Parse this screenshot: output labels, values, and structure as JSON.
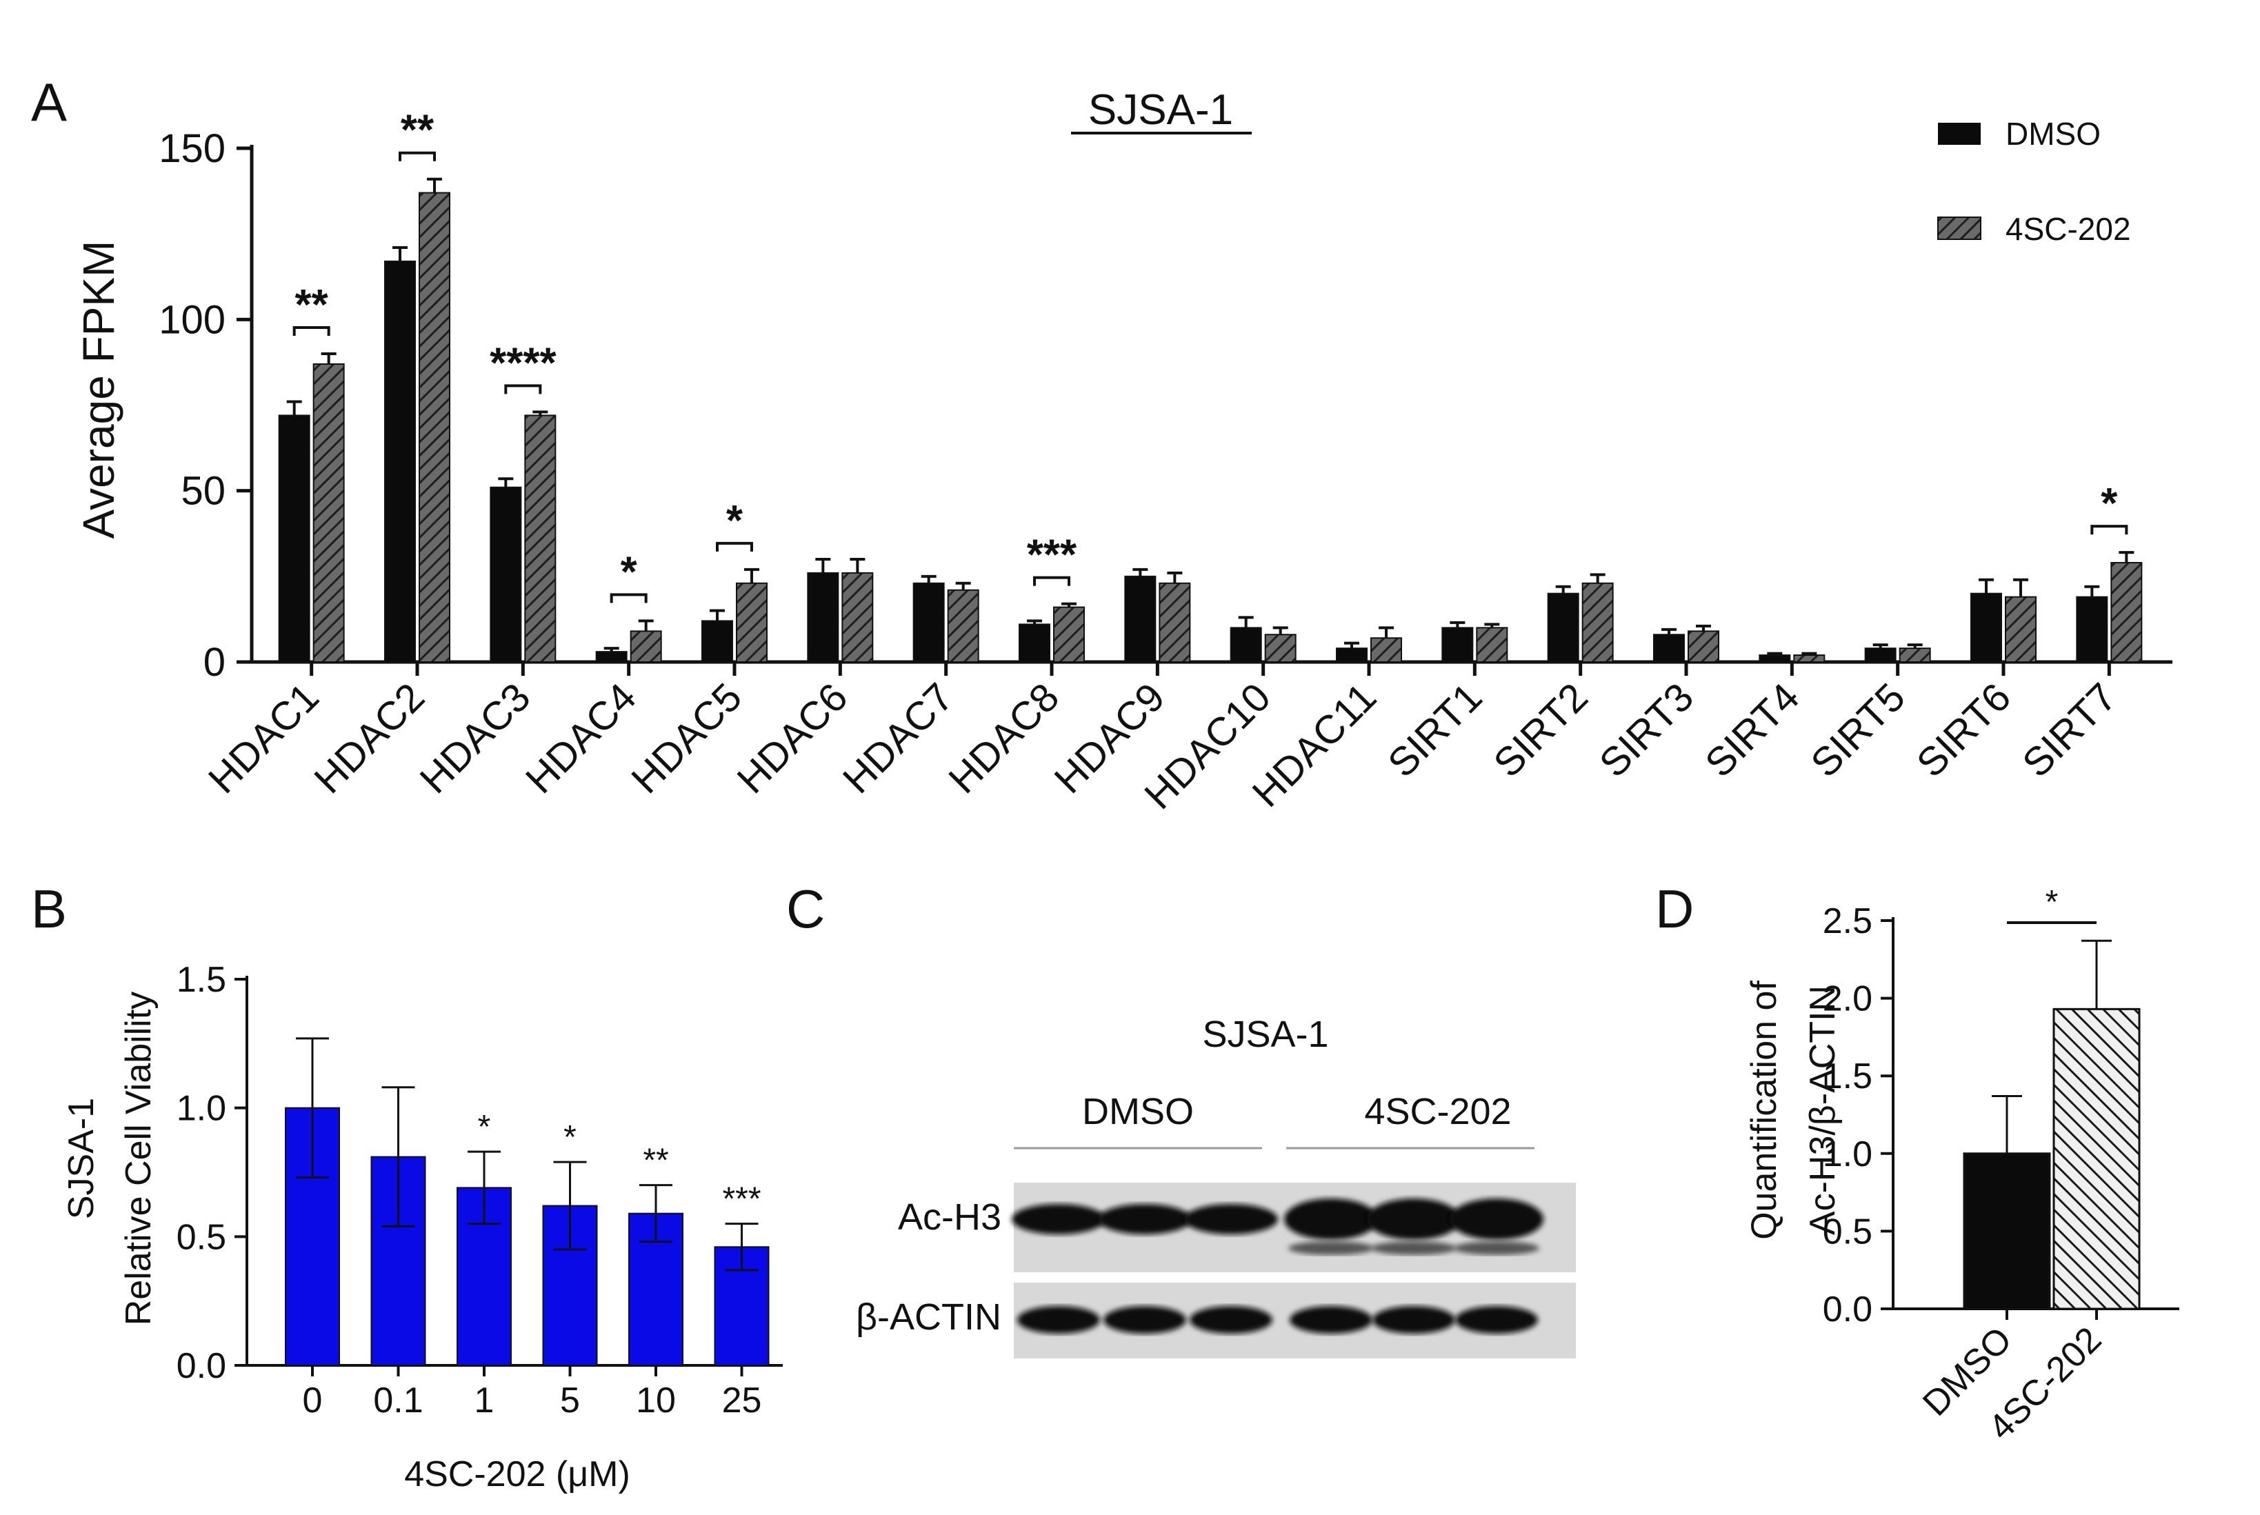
{
  "colors": {
    "dmso": "#0b0b0b",
    "treat_fill": "#5a5a5a",
    "treat_hatch": "#222222",
    "bar_blue": "#0a0ae6",
    "axis": "#111111",
    "blot_bg": "#d8d8d8",
    "band": "#101010"
  },
  "chart_data": [
    {
      "panel": "A",
      "type": "bar",
      "title": "SJSA-1",
      "ylabel": "Average FPKM",
      "xlabel": "",
      "ylim": [
        0,
        150
      ],
      "yticks": [
        "0",
        "50",
        "100",
        "150"
      ],
      "categories": [
        "HDAC1",
        "HDAC2",
        "HDAC3",
        "HDAC4",
        "HDAC5",
        "HDAC6",
        "HDAC7",
        "HDAC8",
        "HDAC9",
        "HDAC10",
        "HDAC11",
        "SIRT1",
        "SIRT2",
        "SIRT3",
        "SIRT4",
        "SIRT5",
        "SIRT6",
        "SIRT7"
      ],
      "series": [
        {
          "name": "DMSO",
          "values": [
            72,
            117,
            51,
            3,
            12,
            26,
            23,
            11,
            25,
            10,
            4,
            10,
            20,
            8,
            2,
            4,
            20,
            19
          ],
          "errors": [
            4,
            4,
            2.5,
            1,
            3,
            4,
            2,
            1,
            2,
            3,
            1.5,
            1.5,
            2,
            1.5,
            0.5,
            1,
            4,
            3
          ]
        },
        {
          "name": "4SC-202",
          "values": [
            87,
            137,
            72,
            9,
            23,
            26,
            21,
            16,
            23,
            8,
            7,
            10,
            23,
            9,
            2,
            4,
            19,
            29
          ],
          "errors": [
            3,
            4,
            1,
            3,
            4,
            4,
            2,
            1,
            3,
            2,
            3,
            1,
            2.5,
            1.5,
            0.5,
            1,
            5,
            3
          ]
        }
      ],
      "significance": [
        "**",
        "**",
        "****",
        "*",
        "*",
        "",
        "",
        "***",
        "",
        "",
        "",
        "",
        "",
        "",
        "",
        "",
        "",
        "*"
      ],
      "legend": [
        "DMSO",
        "4SC-202"
      ],
      "legend_position": "top-right"
    },
    {
      "panel": "B",
      "type": "bar",
      "title": "",
      "ylabel": [
        "SJSA-1",
        "Relative Cell Viability"
      ],
      "xlabel": "4SC-202 (μM)",
      "ylim": [
        0,
        1.5
      ],
      "yticks": [
        "0.0",
        "0.5",
        "1.0",
        "1.5"
      ],
      "categories": [
        "0",
        "0.1",
        "1",
        "5",
        "10",
        "25"
      ],
      "values": [
        1.0,
        0.81,
        0.69,
        0.62,
        0.59,
        0.46
      ],
      "errors": [
        0.27,
        0.27,
        0.14,
        0.17,
        0.11,
        0.09
      ],
      "significance": [
        "",
        "",
        "*",
        "*",
        "**",
        "***"
      ]
    },
    {
      "panel": "D",
      "type": "bar",
      "title": "",
      "ylabel": [
        "Quantification of",
        "Ac-H3/β-ACTIN"
      ],
      "xlabel": "",
      "ylim": [
        0,
        2.5
      ],
      "yticks": [
        "0.0",
        "0.5",
        "1.0",
        "1.5",
        "2.0",
        "2.5"
      ],
      "categories": [
        "DMSO",
        "4SC-202"
      ],
      "values": [
        1.0,
        1.93
      ],
      "errors": [
        0.37,
        0.44
      ],
      "significance": "*"
    }
  ],
  "panels": {
    "a_letter": "A",
    "b_letter": "B",
    "c_letter": "C",
    "d_letter": "D"
  },
  "blot": {
    "title": "SJSA-1",
    "groups": [
      "DMSO",
      "4SC-202"
    ],
    "rows": [
      "Ac-H3",
      "β-ACTIN"
    ],
    "lanes_per_group": 3
  }
}
